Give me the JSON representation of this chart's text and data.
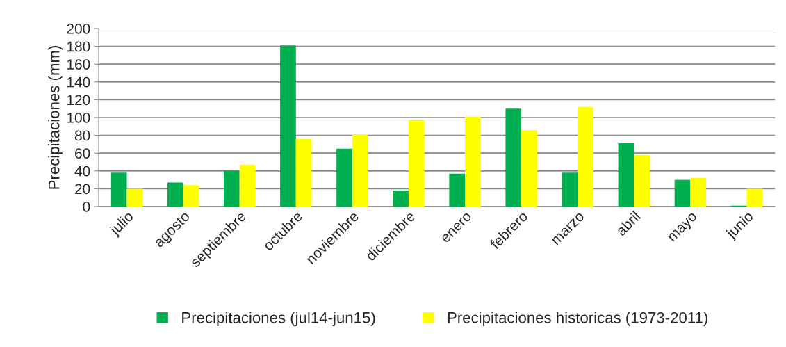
{
  "chart_data": {
    "type": "bar",
    "ylabel": "Precipitaciones (mm)",
    "categories": [
      "julio",
      "agosto",
      "septiembre",
      "octubre",
      "noviembre",
      "diciembre",
      "enero",
      "febrero",
      "marzo",
      "abril",
      "mayo",
      "junio"
    ],
    "series": [
      {
        "name": "Precipitaciones (jul14-jun15)",
        "color": "#00b050",
        "values": [
          38,
          27,
          40,
          181,
          65,
          18,
          37,
          110,
          38,
          71,
          30,
          1
        ]
      },
      {
        "name": "Precipitaciones historicas (1973-2011)",
        "color": "#ffff00",
        "values": [
          20,
          24,
          47,
          76,
          81,
          97,
          101,
          86,
          112,
          58,
          32,
          20
        ]
      }
    ],
    "ylim": [
      0,
      200
    ],
    "yticks": [
      0,
      20,
      40,
      60,
      80,
      100,
      120,
      140,
      160,
      180,
      200
    ],
    "grid": "y",
    "legend": "bottom"
  }
}
